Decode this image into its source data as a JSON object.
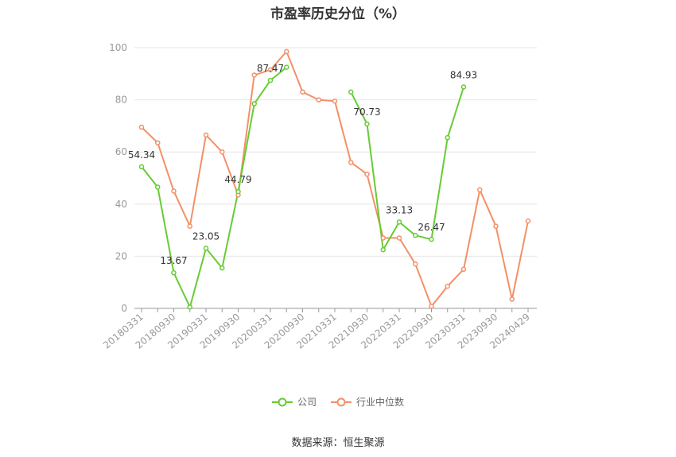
{
  "chart_data": {
    "type": "line",
    "title": "市盈率历史分位（%）",
    "ylim": [
      0,
      100
    ],
    "y_ticks": [
      0,
      20,
      40,
      60,
      80,
      100
    ],
    "x_tick_labels": [
      "20180331",
      "20180930",
      "20190331",
      "20190930",
      "20200331",
      "20200930",
      "20210331",
      "20210930",
      "20220331",
      "20220930",
      "20230331",
      "20230930",
      "20240429"
    ],
    "x": [
      "20180331",
      "20180630",
      "20180930",
      "20181231",
      "20190331",
      "20190630",
      "20190930",
      "20191231",
      "20200331",
      "20200630",
      "20200930",
      "20201231",
      "20210331",
      "20210630",
      "20210930",
      "20211231",
      "20220331",
      "20220630",
      "20220930",
      "20221231",
      "20230331",
      "20230630",
      "20230930",
      "20231231",
      "20240429"
    ],
    "series": [
      {
        "name": "公司",
        "color": "#66cc33",
        "values": [
          54.34,
          46.5,
          13.67,
          0.5,
          23.05,
          15.5,
          44.79,
          78.5,
          87.47,
          92.5,
          null,
          null,
          null,
          83.0,
          70.73,
          22.5,
          33.13,
          28.0,
          26.47,
          65.5,
          84.93,
          null,
          null,
          null,
          null
        ]
      },
      {
        "name": "行业中位数",
        "color": "#f39066",
        "values": [
          69.5,
          63.5,
          45.0,
          31.5,
          66.5,
          60.0,
          43.5,
          89.5,
          91.5,
          98.5,
          83.0,
          80.0,
          79.5,
          56.0,
          51.5,
          27.0,
          27.0,
          17.0,
          0.8,
          8.5,
          15.0,
          45.5,
          31.5,
          3.5,
          33.5
        ]
      }
    ],
    "data_labels": [
      {
        "series": 0,
        "index": 0,
        "text": "54.34"
      },
      {
        "series": 0,
        "index": 2,
        "text": "13.67"
      },
      {
        "series": 0,
        "index": 4,
        "text": "23.05"
      },
      {
        "series": 0,
        "index": 6,
        "text": "44.79"
      },
      {
        "series": 0,
        "index": 8,
        "text": "87.47"
      },
      {
        "series": 0,
        "index": 14,
        "text": "70.73"
      },
      {
        "series": 0,
        "index": 16,
        "text": "33.13"
      },
      {
        "series": 0,
        "index": 18,
        "text": "26.47"
      },
      {
        "series": 0,
        "index": 20,
        "text": "84.93"
      }
    ],
    "grid": true,
    "legend_position": "bottom"
  },
  "legend": {
    "company_label": "公司",
    "industry_label": "行业中位数"
  },
  "source_text": "数据来源：恒生聚源"
}
